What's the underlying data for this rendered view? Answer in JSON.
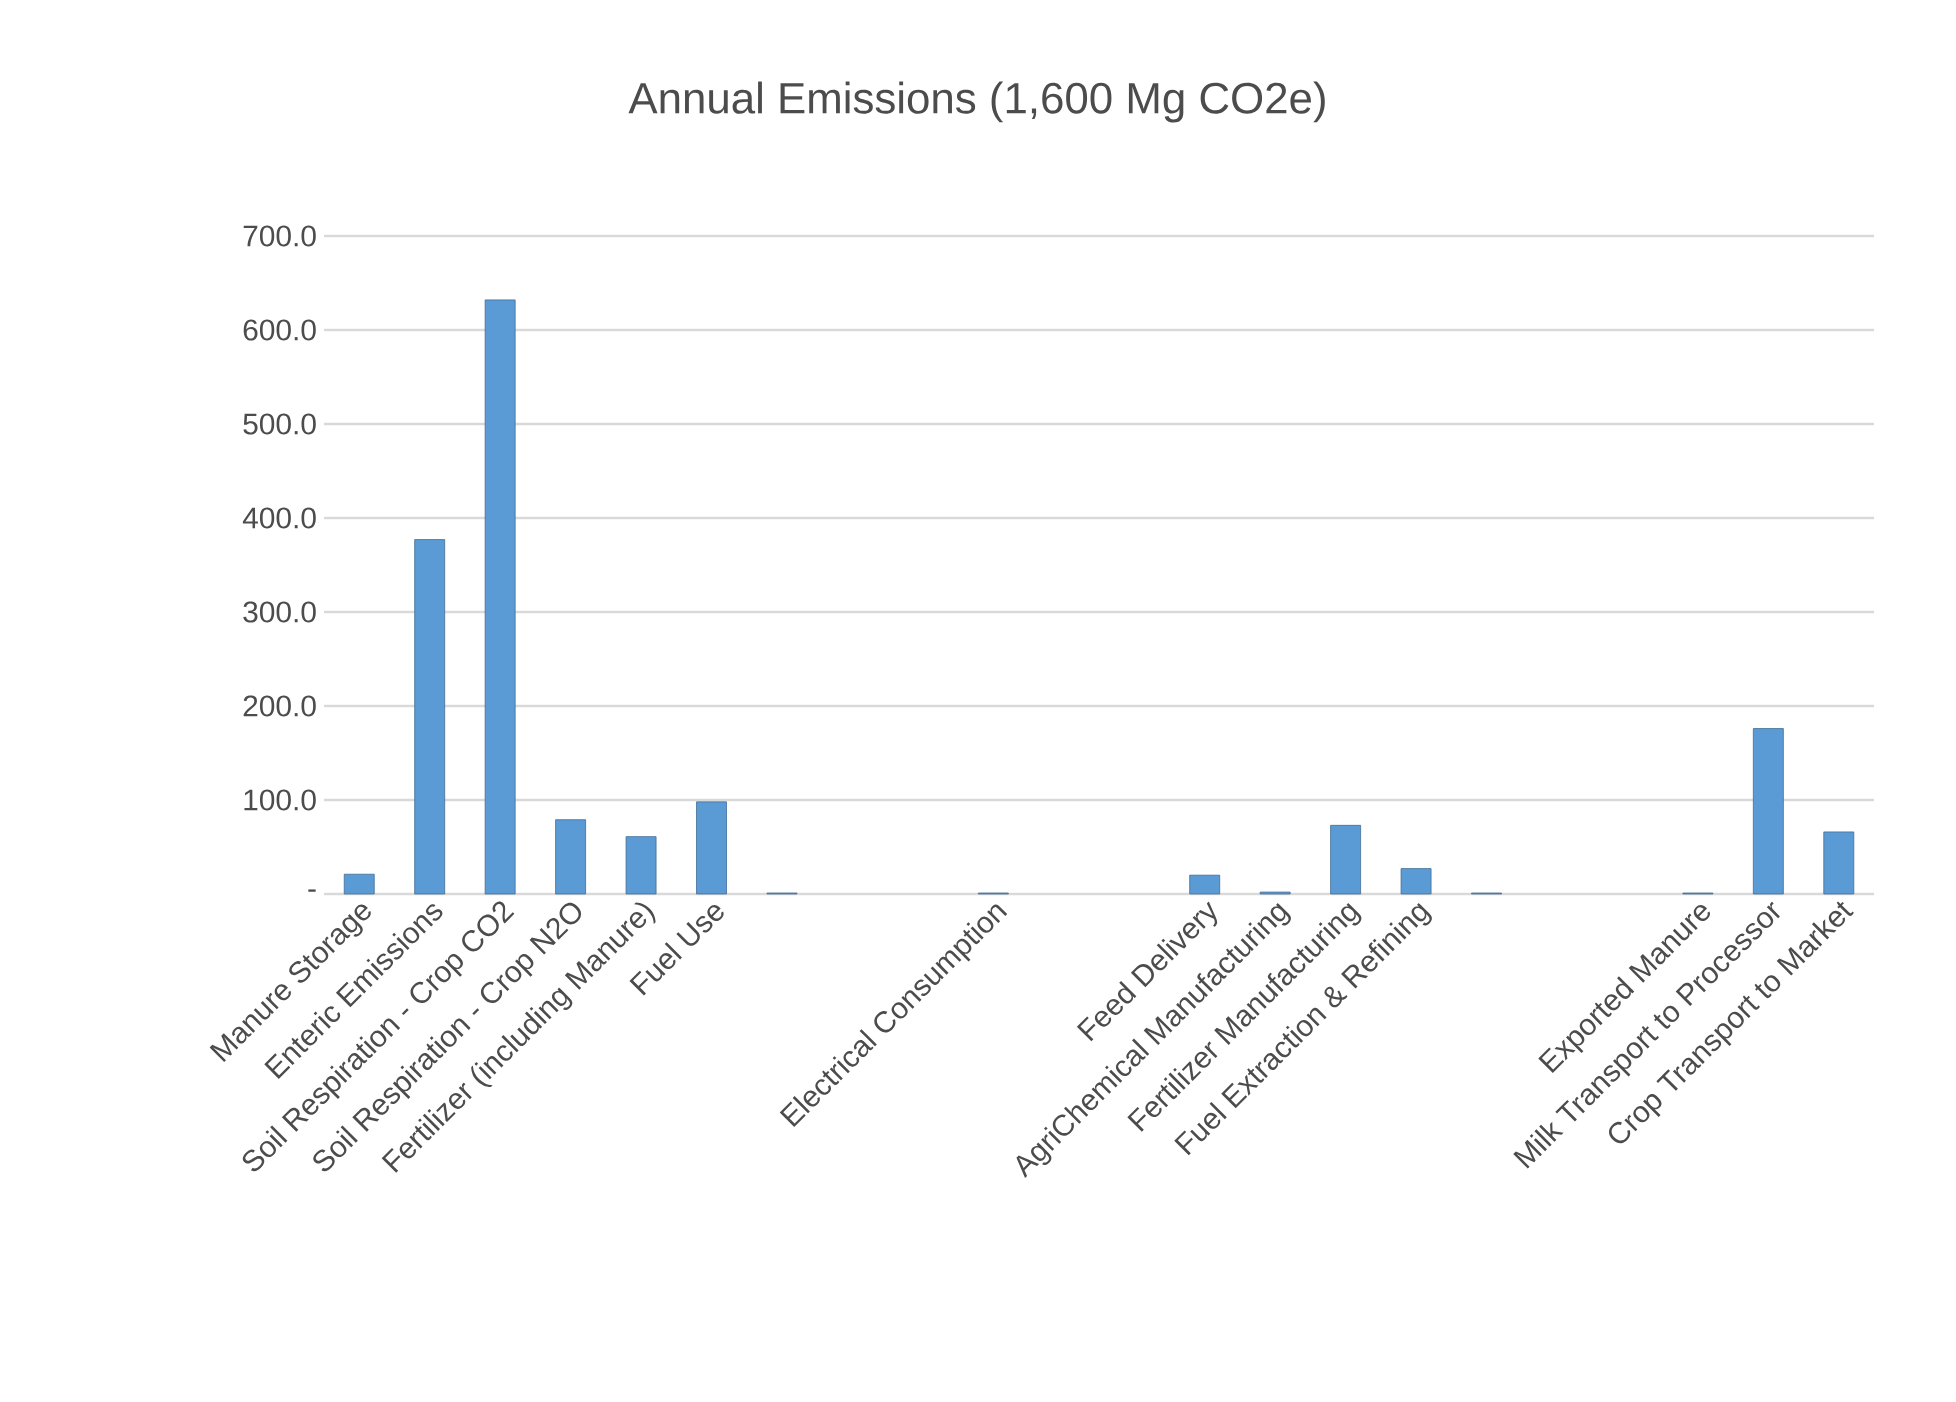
{
  "chart_data": {
    "type": "bar",
    "title": "Annual Emissions (1,600 Mg CO2e)",
    "categories": [
      "Manure Storage",
      "Enteric Emissions",
      "Soil Respiration - Crop CO2",
      "Soil Respiration - Crop N2O",
      "Fertilizer (including Manure)",
      "Fuel Use",
      null,
      null,
      null,
      "Electrical Consumption",
      null,
      null,
      "Feed Delivery",
      "AgriChemical Manufacturing",
      "Fertilizer Manufacturing",
      "Fuel Extraction & Refining",
      null,
      null,
      null,
      "Exported Manure",
      "Milk Transport to Processor",
      "Crop Transport to Market"
    ],
    "values": [
      21,
      377,
      632,
      79,
      61,
      98,
      1,
      null,
      null,
      1,
      null,
      null,
      20,
      2,
      73,
      27,
      1,
      null,
      null,
      1,
      176,
      66
    ],
    "color": "#5b9bd5",
    "ylim": [
      0,
      700
    ],
    "yticks": [
      {
        "value": 0,
        "label": "-"
      },
      {
        "value": 100,
        "label": "100.0"
      },
      {
        "value": 200,
        "label": "200.0"
      },
      {
        "value": 300,
        "label": "300.0"
      },
      {
        "value": 400,
        "label": "400.0"
      },
      {
        "value": 500,
        "label": "500.0"
      },
      {
        "value": 600,
        "label": "600.0"
      },
      {
        "value": 700,
        "label": "700.0"
      }
    ],
    "grid": "y"
  }
}
